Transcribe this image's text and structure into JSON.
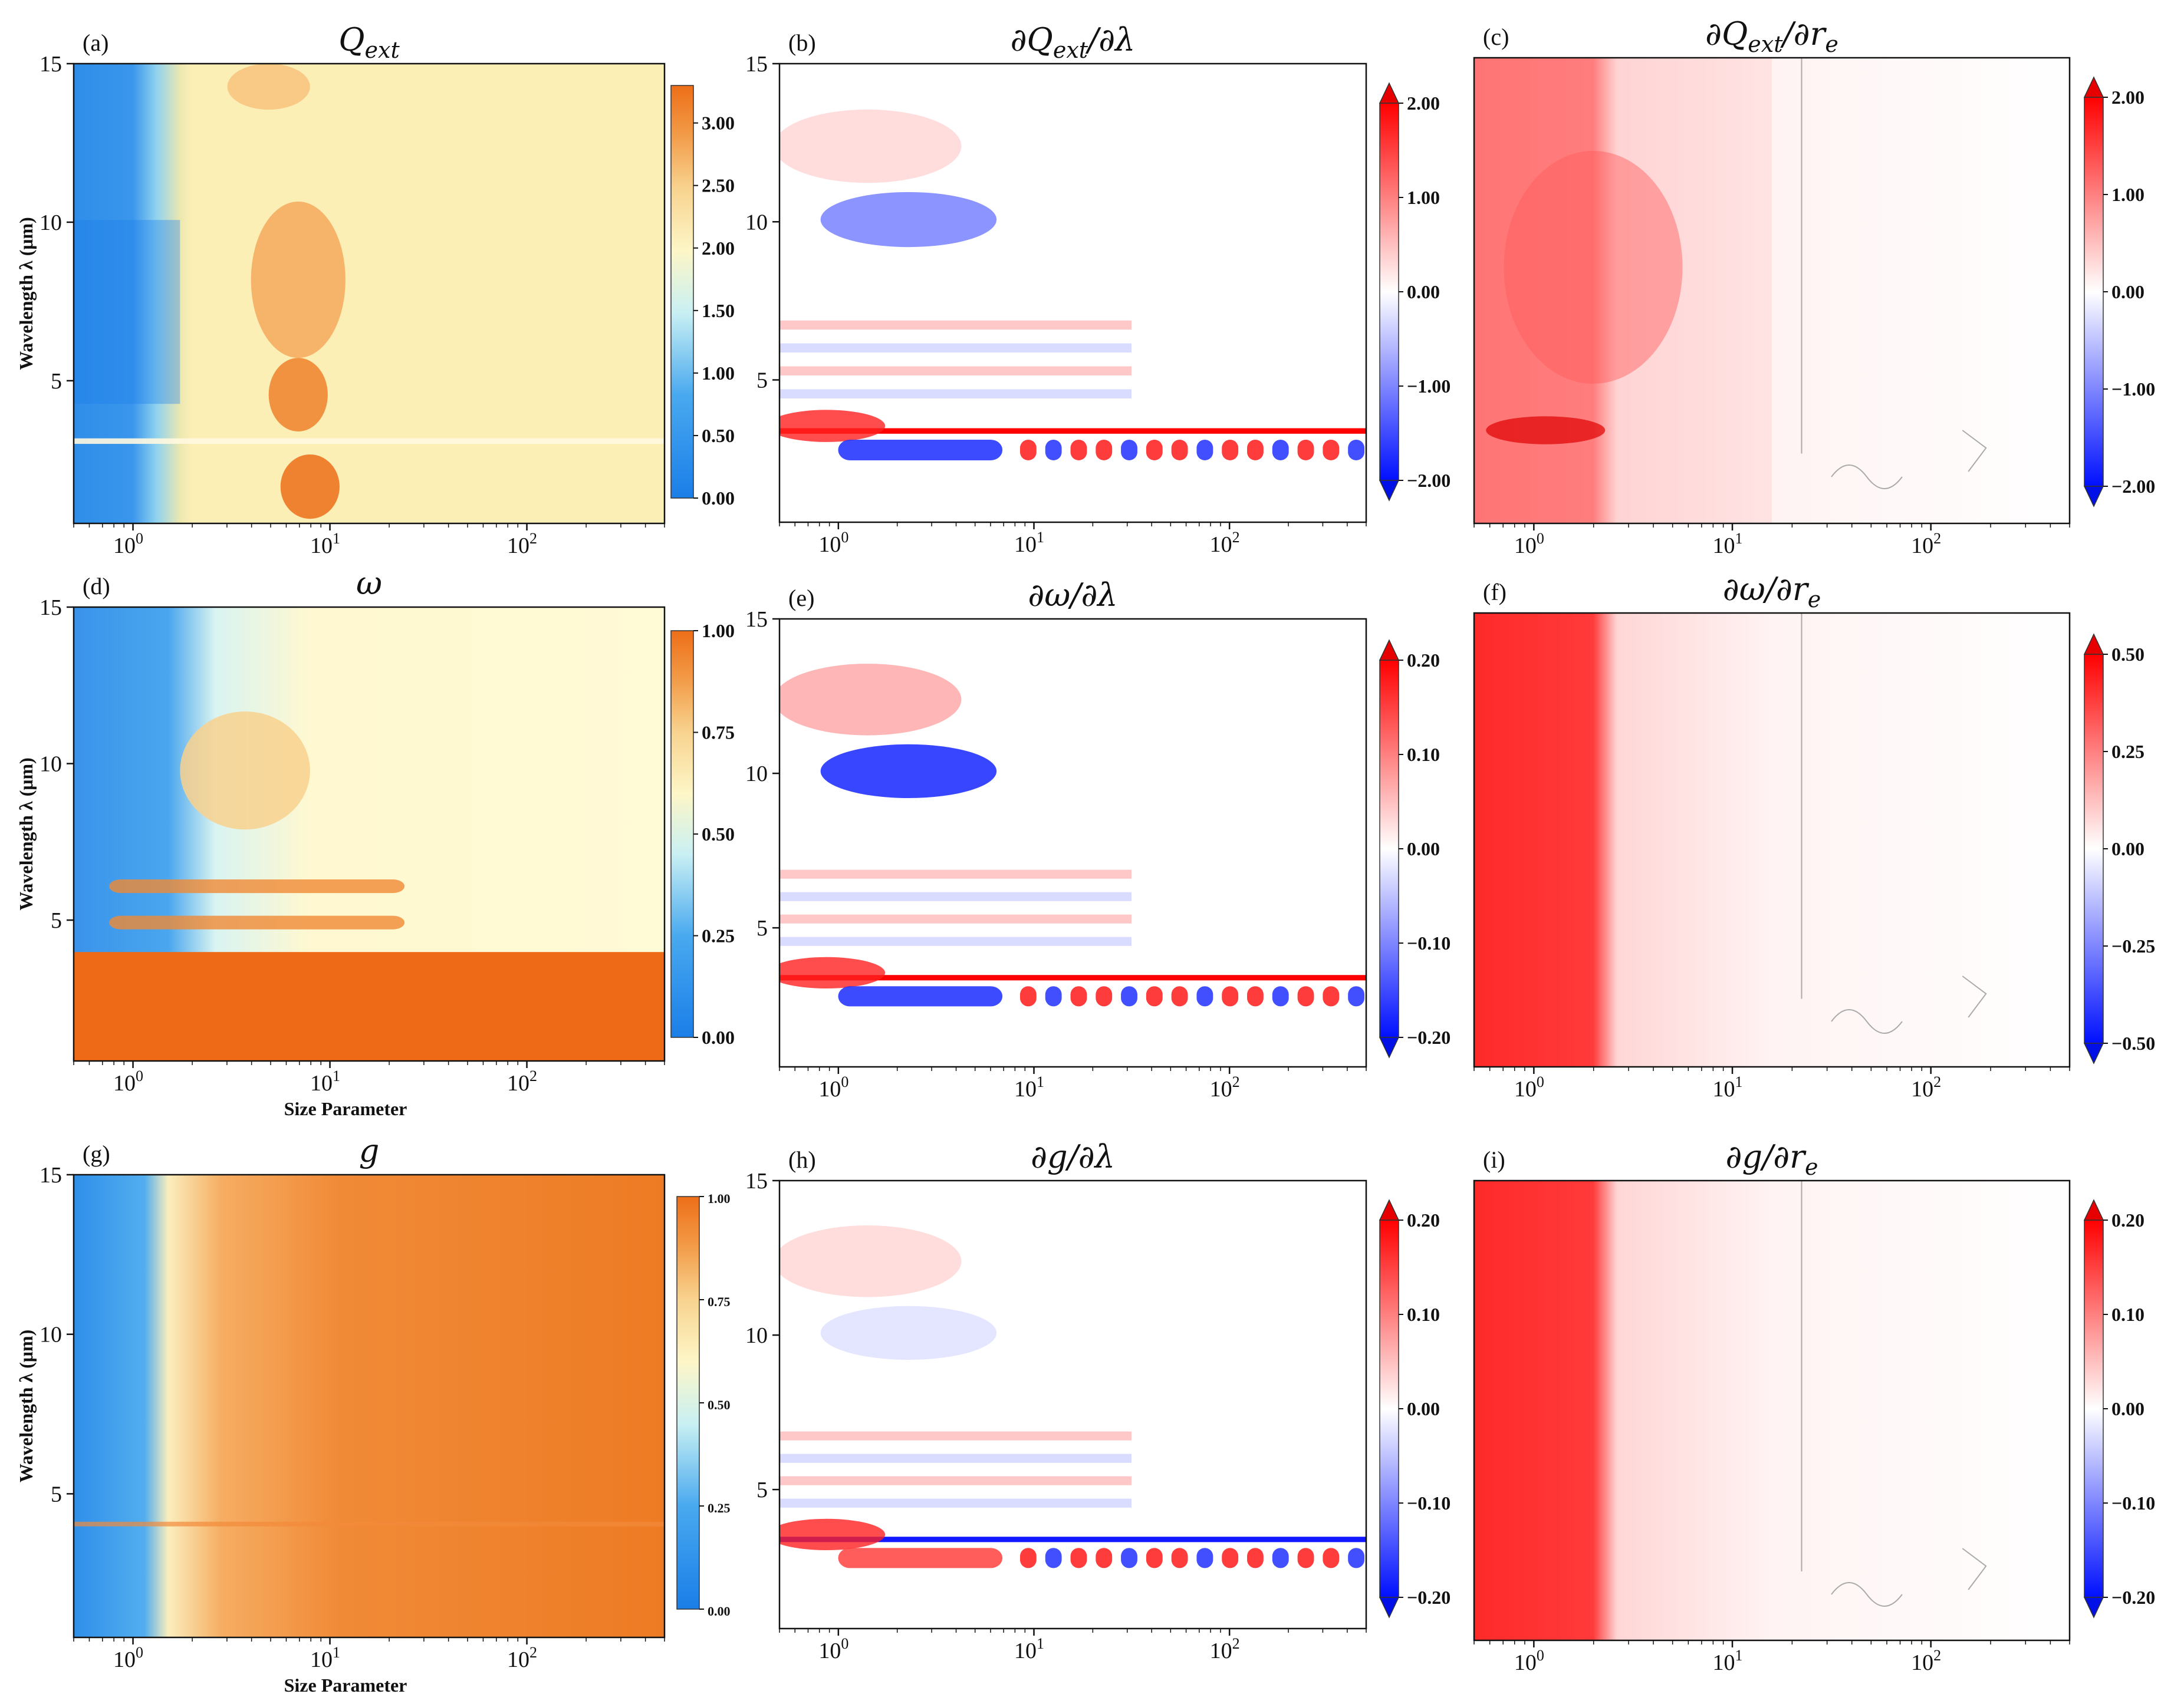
{
  "chart_data": [
    {
      "id": "a",
      "type": "heatmap",
      "tag": "(a)",
      "title_base": "Q",
      "title_sub": "ext",
      "title_prefix": "",
      "title_suffix": "",
      "xscale": "log",
      "xlim": [
        0.5,
        500
      ],
      "xticks": [
        {
          "base": "10",
          "exp": "0"
        },
        {
          "base": "10",
          "exp": "1"
        },
        {
          "base": "10",
          "exp": "2"
        }
      ],
      "ylim": [
        0.5,
        15
      ],
      "yticks": [
        "5",
        "10",
        "15"
      ],
      "ylabel": "Wavelength λ (μm)",
      "xlabel": "",
      "colormap": "blue-yellow-orange",
      "extend": false,
      "clim": [
        0,
        3.3
      ],
      "colorbar_ticks": [
        "0.00",
        "0.50",
        "1.00",
        "1.50",
        "2.00",
        "2.50",
        "3.00"
      ]
    },
    {
      "id": "b",
      "type": "heatmap",
      "tag": "(b)",
      "title_base": "Q",
      "title_sub": "ext",
      "title_prefix": "∂",
      "title_suffix": "/∂λ",
      "xscale": "log",
      "xlim": [
        0.5,
        500
      ],
      "xticks": [
        {
          "base": "10",
          "exp": "0"
        },
        {
          "base": "10",
          "exp": "1"
        },
        {
          "base": "10",
          "exp": "2"
        }
      ],
      "ylim": [
        0.5,
        15
      ],
      "yticks": [
        "5",
        "10",
        "15"
      ],
      "ylabel": "",
      "xlabel": "",
      "colormap": "blue-white-red",
      "extend": true,
      "clim": [
        -2,
        2
      ],
      "colorbar_ticks": [
        "−2.00",
        "−1.00",
        "0.00",
        "1.00",
        "2.00"
      ]
    },
    {
      "id": "c",
      "type": "heatmap",
      "tag": "(c)",
      "title_base": "Q",
      "title_sub": "ext",
      "title_prefix": "∂",
      "title_suffix": "/∂r",
      "title_suffix_sub": "e",
      "xscale": "log",
      "xlim": [
        0.5,
        500
      ],
      "xticks": [
        {
          "base": "10",
          "exp": "0"
        },
        {
          "base": "10",
          "exp": "1"
        },
        {
          "base": "10",
          "exp": "2"
        }
      ],
      "ylim": [
        0.5,
        15
      ],
      "yticks": [],
      "ylabel": "",
      "xlabel": "",
      "colormap": "blue-white-red",
      "extend": true,
      "clim": [
        -2,
        2
      ],
      "colorbar_ticks": [
        "−2.00",
        "−1.00",
        "0.00",
        "1.00",
        "2.00"
      ]
    },
    {
      "id": "d",
      "type": "heatmap",
      "tag": "(d)",
      "title_base": "ω",
      "title_sub": "",
      "title_prefix": "",
      "title_suffix": "",
      "xscale": "log",
      "xlim": [
        0.5,
        500
      ],
      "xticks": [
        {
          "base": "10",
          "exp": "0"
        },
        {
          "base": "10",
          "exp": "1"
        },
        {
          "base": "10",
          "exp": "2"
        }
      ],
      "ylim": [
        0.5,
        15
      ],
      "yticks": [
        "5",
        "10",
        "15"
      ],
      "ylabel": "Wavelength λ (μm)",
      "xlabel": "Size Parameter",
      "colormap": "blue-yellow-orange",
      "extend": false,
      "clim": [
        0,
        1
      ],
      "colorbar_ticks": [
        "0.00",
        "0.25",
        "0.50",
        "0.75",
        "1.00"
      ]
    },
    {
      "id": "e",
      "type": "heatmap",
      "tag": "(e)",
      "title_base": "ω",
      "title_sub": "",
      "title_prefix": "∂",
      "title_suffix": "/∂λ",
      "xscale": "log",
      "xlim": [
        0.5,
        500
      ],
      "xticks": [
        {
          "base": "10",
          "exp": "0"
        },
        {
          "base": "10",
          "exp": "1"
        },
        {
          "base": "10",
          "exp": "2"
        }
      ],
      "ylim": [
        0.5,
        15
      ],
      "yticks": [
        "5",
        "10",
        "15"
      ],
      "ylabel": "",
      "xlabel": "",
      "colormap": "blue-white-red",
      "extend": true,
      "clim": [
        -0.2,
        0.2
      ],
      "colorbar_ticks": [
        "−0.20",
        "−0.10",
        "0.00",
        "0.10",
        "0.20"
      ]
    },
    {
      "id": "f",
      "type": "heatmap",
      "tag": "(f)",
      "title_base": "ω",
      "title_sub": "",
      "title_prefix": "∂",
      "title_suffix": "/∂r",
      "title_suffix_sub": "e",
      "xscale": "log",
      "xlim": [
        0.5,
        500
      ],
      "xticks": [
        {
          "base": "10",
          "exp": "0"
        },
        {
          "base": "10",
          "exp": "1"
        },
        {
          "base": "10",
          "exp": "2"
        }
      ],
      "ylim": [
        0.5,
        15
      ],
      "yticks": [],
      "ylabel": "",
      "xlabel": "",
      "colormap": "blue-white-red",
      "extend": true,
      "clim": [
        -0.5,
        0.5
      ],
      "colorbar_ticks": [
        "−0.50",
        "−0.25",
        "0.00",
        "0.25",
        "0.50"
      ]
    },
    {
      "id": "g",
      "type": "heatmap",
      "tag": "(g)",
      "title_base": "g",
      "title_sub": "",
      "title_prefix": "",
      "title_suffix": "",
      "xscale": "log",
      "xlim": [
        0.5,
        500
      ],
      "xticks": [
        {
          "base": "10",
          "exp": "0"
        },
        {
          "base": "10",
          "exp": "1"
        },
        {
          "base": "10",
          "exp": "2"
        }
      ],
      "ylim": [
        0.5,
        15
      ],
      "yticks": [
        "5",
        "10",
        "15"
      ],
      "ylabel": "Wavelength λ (μm)",
      "xlabel": "Size Parameter",
      "colormap": "blue-yellow-orange",
      "extend": false,
      "clim": [
        0,
        1
      ],
      "colorbar_ticks": [
        "0.00",
        "0.25",
        "0.50",
        "0.75",
        "1.00"
      ]
    },
    {
      "id": "h",
      "type": "heatmap",
      "tag": "(h)",
      "title_base": "g",
      "title_sub": "",
      "title_prefix": "∂",
      "title_suffix": "/∂λ",
      "xscale": "log",
      "xlim": [
        0.5,
        500
      ],
      "xticks": [
        {
          "base": "10",
          "exp": "0"
        },
        {
          "base": "10",
          "exp": "1"
        },
        {
          "base": "10",
          "exp": "2"
        }
      ],
      "ylim": [
        0.5,
        15
      ],
      "yticks": [
        "5",
        "10",
        "15"
      ],
      "ylabel": "",
      "xlabel": "",
      "colormap": "blue-white-red",
      "extend": true,
      "clim": [
        -0.2,
        0.2
      ],
      "colorbar_ticks": [
        "−0.20",
        "−0.10",
        "0.00",
        "0.10",
        "0.20"
      ]
    },
    {
      "id": "i",
      "type": "heatmap",
      "tag": "(i)",
      "title_base": "g",
      "title_sub": "",
      "title_prefix": "∂",
      "title_suffix": "/∂r",
      "title_suffix_sub": "e",
      "xscale": "log",
      "xlim": [
        0.5,
        500
      ],
      "xticks": [
        {
          "base": "10",
          "exp": "0"
        },
        {
          "base": "10",
          "exp": "1"
        },
        {
          "base": "10",
          "exp": "2"
        }
      ],
      "ylim": [
        0.5,
        15
      ],
      "yticks": [],
      "ylabel": "",
      "xlabel": "",
      "colormap": "blue-white-red",
      "extend": true,
      "clim": [
        -0.2,
        0.2
      ],
      "colorbar_ticks": [
        "−0.20",
        "−0.10",
        "0.00",
        "0.10",
        "0.20"
      ]
    }
  ]
}
